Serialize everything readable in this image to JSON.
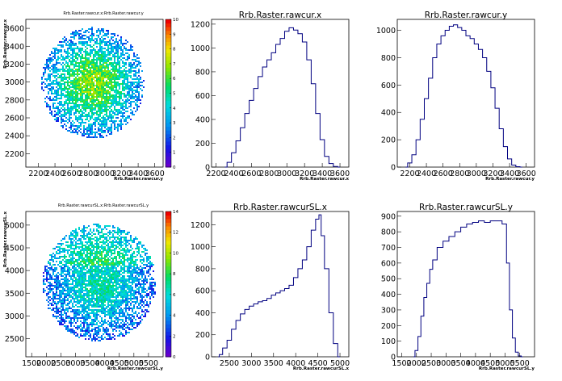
{
  "panels": [
    {
      "id": "p1",
      "chart_data": {
        "type": "heatmap",
        "title": "Rrb.Raster.rawcur.x:Rrb.Raster.rawcur.y",
        "xlabel": "Rrb.Raster.rawcur.y",
        "ylabel": "Rrb.Raster.rawcur.x",
        "xticks": [
          "2200",
          "2400",
          "2600",
          "2800",
          "3000",
          "3200",
          "3400",
          "3600"
        ],
        "xtick_values": [
          2200,
          2400,
          2600,
          2800,
          3000,
          3200,
          3400,
          3600
        ],
        "xlim": [
          2050,
          3700
        ],
        "yticks": [
          "2200",
          "2400",
          "2600",
          "2800",
          "3000",
          "3200",
          "3400",
          "3600"
        ],
        "ytick_values": [
          2200,
          2400,
          2600,
          2800,
          3000,
          3200,
          3400,
          3600
        ],
        "ylim": [
          2050,
          3700
        ],
        "colorbar_ticks": [
          "0",
          "1",
          "2",
          "3",
          "4",
          "5",
          "6",
          "7",
          "8",
          "9",
          "10"
        ],
        "colorbar_range": [
          0,
          10
        ],
        "cloud": {
          "cx": 2850,
          "cy": 3000,
          "rx": 620,
          "ry": 620,
          "angle_deg": 0
        }
      }
    },
    {
      "id": "p2",
      "chart_data": {
        "type": "histogram",
        "title": "Rrb.Raster.rawcur.x",
        "xlabel": "Rrb.Raster.rawcur.x",
        "xticks": [
          "2200",
          "2400",
          "2600",
          "2800",
          "3000",
          "3200",
          "3400",
          "3600"
        ],
        "xtick_values": [
          2200,
          2400,
          2600,
          2800,
          3000,
          3200,
          3400,
          3600
        ],
        "xlim": [
          2150,
          3700
        ],
        "yticks": [
          "0",
          "200",
          "400",
          "600",
          "800",
          "1000",
          "1200"
        ],
        "ytick_values": [
          0,
          200,
          400,
          600,
          800,
          1000,
          1200
        ],
        "ylim": [
          0,
          1240
        ],
        "x": [
          2300,
          2350,
          2400,
          2450,
          2500,
          2550,
          2600,
          2650,
          2700,
          2750,
          2800,
          2850,
          2900,
          2950,
          3000,
          3050,
          3100,
          3150,
          3200,
          3250,
          3300,
          3350,
          3400,
          3450,
          3500,
          3550,
          3600
        ],
        "values": [
          0,
          40,
          120,
          220,
          330,
          450,
          560,
          660,
          760,
          840,
          900,
          960,
          1030,
          1080,
          1140,
          1170,
          1150,
          1120,
          1050,
          900,
          700,
          450,
          230,
          90,
          30,
          5,
          0
        ]
      }
    },
    {
      "id": "p3",
      "chart_data": {
        "type": "histogram",
        "title": "Rrb.Raster.rawcur.y",
        "xlabel": "Rrb.Raster.rawcur.y",
        "xticks": [
          "2200",
          "2400",
          "2600",
          "2800",
          "3000",
          "3200",
          "3400",
          "3600"
        ],
        "xtick_values": [
          2200,
          2400,
          2600,
          2800,
          3000,
          3200,
          3400,
          3600
        ],
        "xlim": [
          2050,
          3700
        ],
        "yticks": [
          "0",
          "200",
          "400",
          "600",
          "800",
          "1000"
        ],
        "ytick_values": [
          0,
          200,
          400,
          600,
          800,
          1000
        ],
        "ylim": [
          0,
          1080
        ],
        "x": [
          2150,
          2200,
          2250,
          2300,
          2350,
          2400,
          2450,
          2500,
          2550,
          2600,
          2650,
          2700,
          2750,
          2800,
          2850,
          2900,
          2950,
          3000,
          3050,
          3100,
          3150,
          3200,
          3250,
          3300,
          3350,
          3400,
          3450,
          3500,
          3550
        ],
        "values": [
          0,
          30,
          90,
          200,
          350,
          500,
          650,
          800,
          900,
          960,
          1000,
          1030,
          1040,
          1020,
          1000,
          960,
          940,
          900,
          860,
          800,
          700,
          580,
          430,
          280,
          150,
          60,
          15,
          3,
          0
        ]
      }
    },
    {
      "id": "p4",
      "chart_data": {
        "type": "heatmap",
        "title": "Rrb.Raster.rawcurSL.x:Rrb.Raster.rawcurSL.y",
        "xlabel": "Rrb.Raster.rawcurSL.y",
        "ylabel": "Rrb.Raster.rawcurSL.x",
        "xticks": [
          "1500",
          "2000",
          "2500",
          "3000",
          "3500",
          "4000",
          "4500",
          "5000",
          "5500"
        ],
        "xtick_values": [
          1500,
          2000,
          2500,
          3000,
          3500,
          4000,
          4500,
          5000,
          5500
        ],
        "xlim": [
          1300,
          6000
        ],
        "yticks": [
          "2500",
          "3000",
          "3500",
          "4000",
          "4500",
          "5000"
        ],
        "ytick_values": [
          2500,
          3000,
          3500,
          4000,
          4500,
          5000
        ],
        "ylim": [
          2100,
          5300
        ],
        "colorbar_ticks": [
          "0",
          "2",
          "4",
          "6",
          "8",
          "10",
          "12",
          "14"
        ],
        "colorbar_range": [
          0,
          14
        ],
        "cloud": {
          "cx": 3800,
          "cy": 3750,
          "rx": 1950,
          "ry": 1300,
          "angle_deg": 0
        }
      }
    },
    {
      "id": "p5",
      "chart_data": {
        "type": "histogram",
        "title": "Rrb.Raster.rawcurSL.x",
        "xlabel": "Rrb.Raster.rawcurSL.x",
        "xticks": [
          "2500",
          "3000",
          "3500",
          "4000",
          "4500",
          "5000"
        ],
        "xtick_values": [
          2500,
          3000,
          3500,
          4000,
          4500,
          5000
        ],
        "xlim": [
          2100,
          5200
        ],
        "yticks": [
          "0",
          "200",
          "400",
          "600",
          "800",
          "1000",
          "1200"
        ],
        "ytick_values": [
          0,
          200,
          400,
          600,
          800,
          1000,
          1200
        ],
        "ylim": [
          0,
          1320
        ],
        "x": [
          2250,
          2300,
          2400,
          2500,
          2600,
          2700,
          2800,
          2900,
          3000,
          3100,
          3200,
          3300,
          3400,
          3500,
          3600,
          3700,
          3800,
          3900,
          4000,
          4100,
          4200,
          4300,
          4400,
          4500,
          4550,
          4600,
          4700,
          4800,
          4900,
          5000
        ],
        "values": [
          0,
          20,
          80,
          150,
          250,
          330,
          390,
          430,
          460,
          480,
          500,
          510,
          530,
          560,
          580,
          600,
          620,
          650,
          720,
          800,
          880,
          1000,
          1150,
          1250,
          1290,
          1100,
          800,
          400,
          120,
          0
        ]
      }
    },
    {
      "id": "p6",
      "chart_data": {
        "type": "histogram",
        "title": "Rrb.Raster.rawcurSL.y",
        "xlabel": "Rrb.Raster.rawcurSL.y",
        "xticks": [
          "1500",
          "2000",
          "2500",
          "3000",
          "3500",
          "4000",
          "4500",
          "5000",
          "5500"
        ],
        "xtick_values": [
          1500,
          2000,
          2500,
          3000,
          3500,
          4000,
          4500,
          5000,
          5500
        ],
        "xlim": [
          1350,
          6000
        ],
        "yticks": [
          "0",
          "100",
          "200",
          "300",
          "400",
          "500",
          "600",
          "700",
          "800",
          "900"
        ],
        "ytick_values": [
          0,
          100,
          200,
          300,
          400,
          500,
          600,
          700,
          800,
          900
        ],
        "ylim": [
          0,
          930
        ],
        "x": [
          1900,
          2000,
          2100,
          2200,
          2300,
          2400,
          2500,
          2600,
          2800,
          3000,
          3200,
          3400,
          3600,
          3800,
          4000,
          4200,
          4400,
          4600,
          4800,
          5000,
          5100,
          5200,
          5300,
          5400,
          5500,
          5600
        ],
        "values": [
          0,
          40,
          130,
          260,
          380,
          470,
          560,
          620,
          700,
          740,
          770,
          800,
          830,
          850,
          860,
          870,
          860,
          870,
          870,
          850,
          600,
          300,
          120,
          30,
          5,
          0
        ]
      }
    }
  ]
}
